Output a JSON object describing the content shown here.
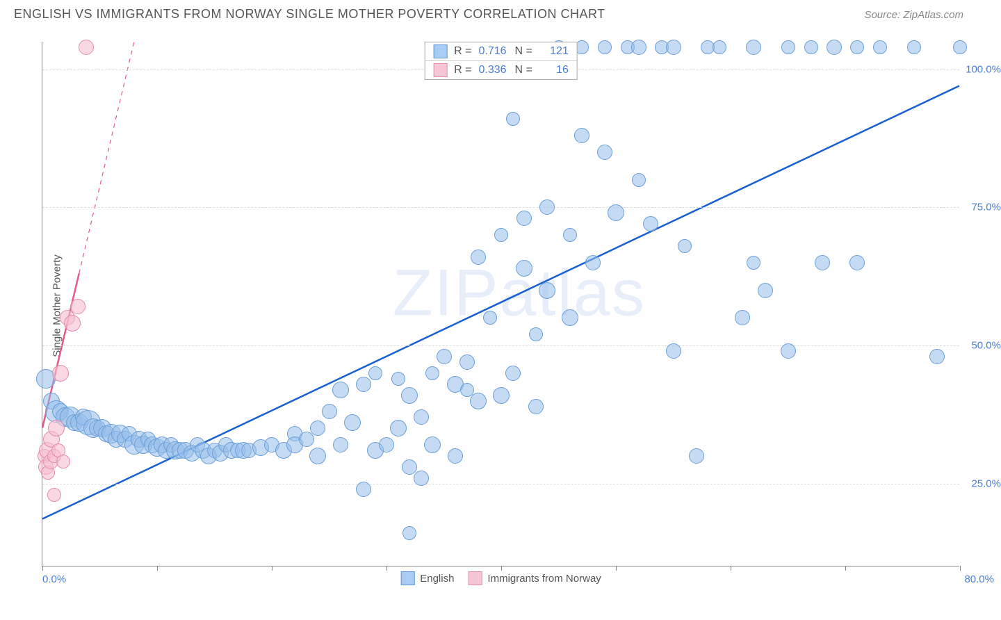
{
  "title": "ENGLISH VS IMMIGRANTS FROM NORWAY SINGLE MOTHER POVERTY CORRELATION CHART",
  "source": "Source: ZipAtlas.com",
  "watermark": "ZIPatlas",
  "ylabel": "Single Mother Poverty",
  "chart": {
    "type": "scatter",
    "xlim": [
      0,
      80
    ],
    "ylim": [
      10,
      105
    ],
    "xlabel_min": "0.0%",
    "xlabel_max": "80.0%",
    "ytick_values": [
      25,
      50,
      75,
      100
    ],
    "ytick_labels": [
      "25.0%",
      "50.0%",
      "75.0%",
      "100.0%"
    ],
    "xtick_positions": [
      0,
      10,
      20,
      30,
      40,
      50,
      60,
      70,
      80
    ],
    "grid_color": "#dddddd",
    "axis_color": "#888888",
    "background_color": "#ffffff",
    "stat_legend": [
      {
        "swatch_fill": "#a9cdf2",
        "swatch_border": "#5b93d6",
        "R_label": "R =",
        "R": "0.716",
        "N_label": "N =",
        "N": "121"
      },
      {
        "swatch_fill": "#f7c6d4",
        "swatch_border": "#e78fb0",
        "R_label": "R =",
        "R": "0.336",
        "N_label": "N =",
        "N": "16"
      }
    ],
    "bottom_legend": [
      {
        "swatch_fill": "#a9cdf2",
        "swatch_border": "#5b93d6",
        "label": "English"
      },
      {
        "swatch_fill": "#f7c6d4",
        "swatch_border": "#e78fb0",
        "label": "Immigrants from Norway"
      }
    ],
    "series": [
      {
        "name": "english",
        "point_fill": "rgba(150,190,235,0.55)",
        "point_border": "#6b9fd8",
        "point_radius_min": 8,
        "point_radius_max": 16,
        "trend_color": "#1860d0",
        "trend_width": 2.5,
        "trend": {
          "x1": 0,
          "y1": 18.5,
          "x2": 80,
          "y2": 97
        },
        "points": [
          [
            0.3,
            44,
            14
          ],
          [
            0.8,
            40,
            12
          ],
          [
            1.2,
            38,
            16
          ],
          [
            1.6,
            38,
            12
          ],
          [
            2,
            37,
            14
          ],
          [
            2.4,
            37,
            15
          ],
          [
            2.8,
            36,
            12
          ],
          [
            3.2,
            36,
            13
          ],
          [
            3.6,
            37,
            12
          ],
          [
            4,
            36,
            18
          ],
          [
            4.4,
            35,
            14
          ],
          [
            4.8,
            35,
            12
          ],
          [
            5.2,
            35,
            13
          ],
          [
            5.6,
            34,
            12
          ],
          [
            6,
            34,
            14
          ],
          [
            6.4,
            33,
            12
          ],
          [
            6.8,
            34,
            13
          ],
          [
            7.2,
            33,
            12
          ],
          [
            7.6,
            34,
            11
          ],
          [
            8,
            32,
            14
          ],
          [
            8.4,
            33,
            12
          ],
          [
            8.8,
            32,
            13
          ],
          [
            9.2,
            33,
            11
          ],
          [
            9.6,
            32,
            12
          ],
          [
            10,
            31.5,
            13
          ],
          [
            10.4,
            32,
            12
          ],
          [
            10.8,
            31,
            12
          ],
          [
            11.2,
            32,
            11
          ],
          [
            11.6,
            31,
            13
          ],
          [
            12,
            31,
            12
          ],
          [
            12.5,
            31,
            12
          ],
          [
            13,
            30.5,
            12
          ],
          [
            13.5,
            32,
            11
          ],
          [
            14,
            31,
            12
          ],
          [
            14.5,
            30,
            12
          ],
          [
            15,
            31,
            11
          ],
          [
            15.5,
            30.5,
            12
          ],
          [
            16,
            32,
            11
          ],
          [
            16.5,
            31,
            12
          ],
          [
            17,
            31,
            11
          ],
          [
            17.5,
            31,
            12
          ],
          [
            18,
            31,
            11
          ],
          [
            19,
            31.5,
            12
          ],
          [
            20,
            32,
            11
          ],
          [
            21,
            31,
            12
          ],
          [
            22,
            34,
            11
          ],
          [
            22,
            32,
            12
          ],
          [
            23,
            33,
            11
          ],
          [
            24,
            30,
            12
          ],
          [
            24,
            35,
            11
          ],
          [
            25,
            38,
            11
          ],
          [
            26,
            42,
            12
          ],
          [
            26,
            32,
            11
          ],
          [
            27,
            36,
            12
          ],
          [
            28,
            24,
            11
          ],
          [
            28,
            43,
            11
          ],
          [
            29,
            31,
            12
          ],
          [
            29,
            45,
            10
          ],
          [
            30,
            32,
            11
          ],
          [
            31,
            35,
            12
          ],
          [
            31,
            44,
            10
          ],
          [
            32,
            28,
            11
          ],
          [
            32,
            41,
            12
          ],
          [
            32,
            16,
            10
          ],
          [
            33,
            26,
            11
          ],
          [
            33,
            37,
            11
          ],
          [
            34,
            32,
            12
          ],
          [
            34,
            45,
            10
          ],
          [
            35,
            48,
            11
          ],
          [
            36,
            30,
            11
          ],
          [
            36,
            43,
            12
          ],
          [
            37,
            42,
            10
          ],
          [
            37,
            47,
            11
          ],
          [
            38,
            66,
            11
          ],
          [
            38,
            40,
            12
          ],
          [
            39,
            55,
            10
          ],
          [
            40,
            41,
            12
          ],
          [
            40,
            70,
            10
          ],
          [
            41,
            45,
            11
          ],
          [
            41,
            91,
            10
          ],
          [
            42,
            64,
            12
          ],
          [
            42,
            73,
            11
          ],
          [
            43,
            39,
            11
          ],
          [
            43,
            52,
            10
          ],
          [
            44,
            75,
            11
          ],
          [
            44,
            60,
            12
          ],
          [
            45,
            104,
            10
          ],
          [
            46,
            55,
            12
          ],
          [
            46,
            70,
            10
          ],
          [
            47,
            104,
            10
          ],
          [
            47,
            88,
            11
          ],
          [
            48,
            65,
            11
          ],
          [
            49,
            104,
            10
          ],
          [
            49,
            85,
            11
          ],
          [
            50,
            74,
            12
          ],
          [
            51,
            104,
            10
          ],
          [
            52,
            104,
            11
          ],
          [
            52,
            80,
            10
          ],
          [
            53,
            72,
            11
          ],
          [
            54,
            104,
            10
          ],
          [
            55,
            49,
            11
          ],
          [
            55,
            104,
            11
          ],
          [
            56,
            68,
            10
          ],
          [
            57,
            30,
            11
          ],
          [
            58,
            104,
            10
          ],
          [
            59,
            104,
            10
          ],
          [
            61,
            55,
            11
          ],
          [
            62,
            65,
            10
          ],
          [
            62,
            104,
            11
          ],
          [
            63,
            60,
            11
          ],
          [
            65,
            104,
            10
          ],
          [
            65,
            49,
            11
          ],
          [
            67,
            104,
            10
          ],
          [
            68,
            65,
            11
          ],
          [
            69,
            104,
            11
          ],
          [
            71,
            104,
            10
          ],
          [
            71,
            65,
            11
          ],
          [
            73,
            104,
            10
          ],
          [
            76,
            104,
            10
          ],
          [
            78,
            48,
            11
          ],
          [
            80,
            104,
            10
          ]
        ]
      },
      {
        "name": "norway",
        "point_fill": "rgba(245,190,208,0.6)",
        "point_border": "#e38fae",
        "point_radius_min": 8,
        "point_radius_max": 14,
        "trend_color": "#e35a8a",
        "trend_width": 2.5,
        "trend_solid": {
          "x1": 0,
          "y1": 35,
          "x2": 3.2,
          "y2": 63
        },
        "trend_dash": {
          "x1": 3.2,
          "y1": 63,
          "x2": 8,
          "y2": 105
        },
        "points": [
          [
            0.2,
            30,
            10
          ],
          [
            0.3,
            28,
            11
          ],
          [
            0.4,
            31,
            12
          ],
          [
            0.5,
            27,
            10
          ],
          [
            0.7,
            29,
            11
          ],
          [
            0.8,
            33,
            12
          ],
          [
            1.0,
            30,
            10
          ],
          [
            1.2,
            35,
            12
          ],
          [
            1.4,
            31,
            10
          ],
          [
            1.6,
            45,
            12
          ],
          [
            1.8,
            29,
            10
          ],
          [
            2.2,
            55,
            11
          ],
          [
            2.6,
            54,
            12
          ],
          [
            3.1,
            57,
            11
          ],
          [
            1.0,
            23,
            10
          ],
          [
            3.8,
            104,
            11
          ]
        ]
      }
    ]
  }
}
